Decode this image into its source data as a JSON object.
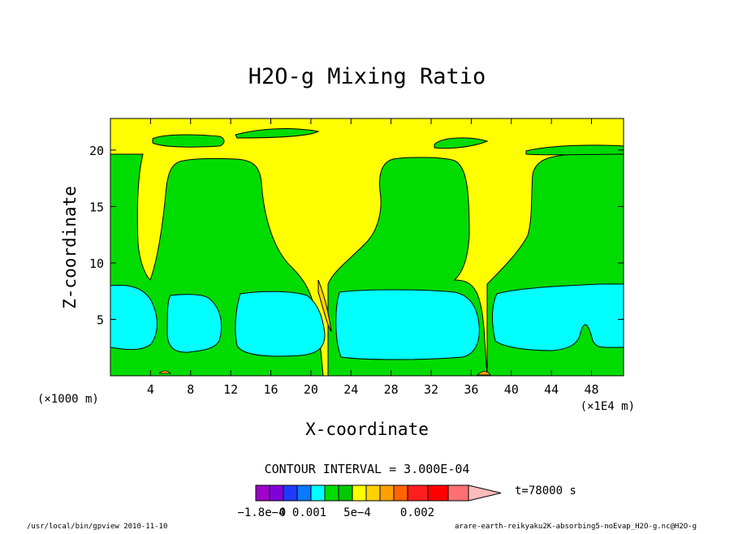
{
  "chart_data": {
    "type": "heatmap",
    "title": "H2O-g Mixing Ratio",
    "xlabel": "X-coordinate",
    "ylabel": "Z-coordinate",
    "x_unit_left": "(×1000 m)",
    "x_unit_right": "(×1E4 m)",
    "x_ticks": [
      "4",
      "8",
      "12",
      "16",
      "20",
      "24",
      "28",
      "32",
      "36",
      "40",
      "44",
      "48"
    ],
    "x_tick_values": [
      4,
      8,
      12,
      16,
      20,
      24,
      28,
      32,
      36,
      40,
      44,
      48
    ],
    "y_ticks": [
      "5",
      "10",
      "15",
      "20"
    ],
    "y_tick_values": [
      5,
      10,
      15,
      20
    ],
    "xlim": [
      0,
      51.2
    ],
    "ylim": [
      0,
      22.8
    ],
    "contour_interval_text": "CONTOUR INTERVAL = 3.000E-04",
    "time_label": "t=78000 s",
    "colorbar": {
      "colors": [
        "#a000c8",
        "#8200dc",
        "#1e3cff",
        "#0a78ff",
        "#00ffff",
        "#00dc00",
        "#00c800",
        "#ffff00",
        "#ffd200",
        "#ffa000",
        "#ff6400",
        "#ff1e1e",
        "#ff0000",
        "#ff7070",
        "#ffbcbc"
      ],
      "tick_labels": [
        "−1.8e−4",
        "0",
        "0.001",
        "5e−4",
        "0.002"
      ]
    },
    "levels": {
      "background": "#ffff00",
      "green": "#00dc00",
      "cyan": "#00ffff",
      "orange": "#ffa000",
      "line": "#000000"
    },
    "moist_columns": [
      {
        "x": [
          0,
          4
        ],
        "z": [
          0,
          20
        ]
      },
      {
        "x": [
          6,
          14
        ],
        "z": [
          0,
          19
        ]
      },
      {
        "x": [
          22,
          36
        ],
        "z": [
          0,
          18.5
        ]
      },
      {
        "x": [
          41,
          51.2
        ],
        "z": [
          0,
          20
        ]
      }
    ],
    "cyan_blobs": [
      {
        "x": [
          0,
          4.5
        ],
        "z": [
          2.2,
          8.2
        ]
      },
      {
        "x": [
          6,
          10
        ],
        "z": [
          2.2,
          7.5
        ]
      },
      {
        "x": [
          13,
          20
        ],
        "z": [
          2,
          7.5
        ]
      },
      {
        "x": [
          22.5,
          36
        ],
        "z": [
          1.8,
          7.7
        ]
      },
      {
        "x": [
          38,
          51.2
        ],
        "z": [
          1.8,
          8.2
        ]
      }
    ]
  },
  "footer": {
    "left": "/usr/local/bin/gpview  2010-11-10",
    "right": "arare-earth-reikyaku2K-absorbing5-noEvap_H2O-g.nc@H2O-g"
  }
}
